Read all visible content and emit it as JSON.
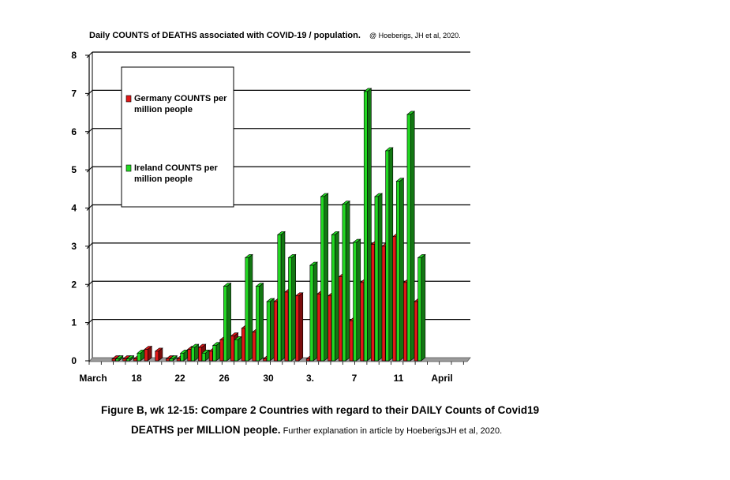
{
  "title": "Daily  COUNTS of DEATHS  associated  with COVID-19   / population.",
  "credit": "@ Hoeberigs, JH et al, 2020.",
  "caption": {
    "line1": "Figure B, wk 12-15:    Compare 2 Countries with regard to their DAILY Counts of Covid19",
    "line2_bold": "DEATHS per MILLION people.",
    "line2_normal": " Further explanation in article by HoeberigsJH et al, 2020."
  },
  "colors": {
    "germany": "#e01818",
    "ireland": "#22d822",
    "floor": "#9a9a9a",
    "gridline": "#000000"
  },
  "chart_data": {
    "type": "bar",
    "ylim": [
      0,
      8
    ],
    "yticks": [
      "0",
      "1",
      "2",
      "3",
      "4",
      "5",
      "6",
      "7",
      "8"
    ],
    "x_tick_labels": [
      "March",
      "18",
      "22",
      "26",
      "30",
      "3.",
      "7",
      "11",
      "April"
    ],
    "legend": {
      "placement": "top-left",
      "entries": [
        "Germany COUNTS per million people",
        "Ireland COUNTS per million people"
      ]
    },
    "series": [
      {
        "name": "Germany COUNTS per million people",
        "values": [
          0.05,
          0.05,
          0.05,
          0.3,
          0.25,
          0.05,
          0.05,
          0.3,
          0.35,
          0.25,
          0.55,
          0.65,
          0.85,
          0.75,
          0.05,
          1.55,
          1.8,
          1.7,
          0.05,
          1.75,
          1.7,
          2.2,
          1.05,
          2.05,
          3.05,
          3.0,
          3.25,
          2.05,
          1.55,
          0
        ]
      },
      {
        "name": "Ireland COUNTS per million people",
        "values": [
          0.05,
          0.05,
          0.2,
          0,
          0,
          0.05,
          0.2,
          0.35,
          0.2,
          0.4,
          1.95,
          0.55,
          2.7,
          1.95,
          1.55,
          3.3,
          2.7,
          0,
          2.5,
          4.3,
          3.3,
          4.1,
          3.1,
          7.05,
          4.3,
          5.5,
          4.7,
          6.45,
          2.7,
          0
        ]
      }
    ]
  }
}
